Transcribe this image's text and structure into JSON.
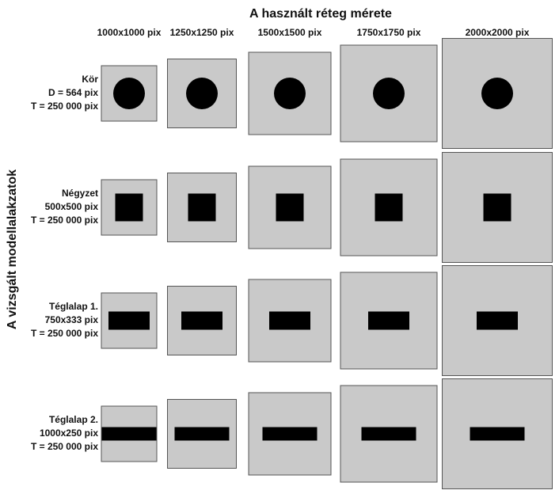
{
  "title": "A használt réteg mérete",
  "side_title": "A vizsgált modellalakzatok",
  "columns": [
    "1000x1000 pix",
    "1250x1250 pix",
    "1500x1500 pix",
    "1750x1750 pix",
    "2000x2000 pix"
  ],
  "rows": [
    {
      "lines": [
        "Kör",
        "D = 564 pix",
        "T = 250 000 pix"
      ]
    },
    {
      "lines": [
        "Négyzet",
        "500x500 pix",
        "T = 250 000 pix"
      ]
    },
    {
      "lines": [
        "Téglalap 1.",
        "750x333 pix",
        "T = 250 000 pix"
      ]
    },
    {
      "lines": [
        "Téglalap 2.",
        "1000x250 pix",
        "T = 250 000 pix"
      ]
    }
  ]
}
